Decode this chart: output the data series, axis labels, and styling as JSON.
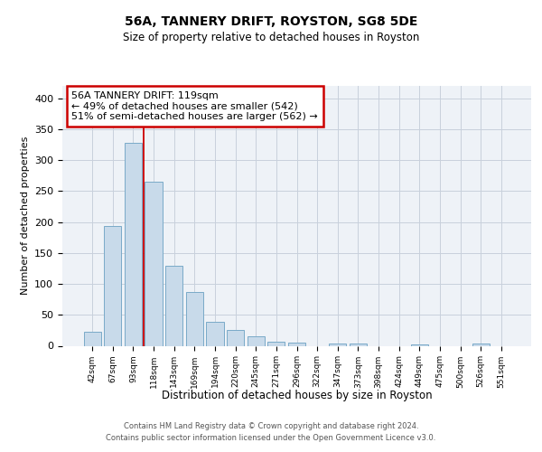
{
  "title": "56A, TANNERY DRIFT, ROYSTON, SG8 5DE",
  "subtitle": "Size of property relative to detached houses in Royston",
  "xlabel": "Distribution of detached houses by size in Royston",
  "ylabel": "Number of detached properties",
  "categories": [
    "42sqm",
    "67sqm",
    "93sqm",
    "118sqm",
    "143sqm",
    "169sqm",
    "194sqm",
    "220sqm",
    "245sqm",
    "271sqm",
    "296sqm",
    "322sqm",
    "347sqm",
    "373sqm",
    "398sqm",
    "424sqm",
    "449sqm",
    "475sqm",
    "500sqm",
    "526sqm",
    "551sqm"
  ],
  "values": [
    23,
    193,
    328,
    265,
    130,
    87,
    38,
    25,
    16,
    7,
    5,
    0,
    4,
    3,
    0,
    0,
    2,
    0,
    0,
    3,
    0
  ],
  "bar_color": "#c8daea",
  "bar_edge_color": "#7aaac8",
  "vline_color": "#cc0000",
  "vline_x": 2.5,
  "annotation_line1": "56A TANNERY DRIFT: 119sqm",
  "annotation_line2": "← 49% of detached houses are smaller (542)",
  "annotation_line3": "51% of semi-detached houses are larger (562) →",
  "ylim": [
    0,
    420
  ],
  "yticks": [
    0,
    50,
    100,
    150,
    200,
    250,
    300,
    350,
    400
  ],
  "grid_color": "#c8d0dc",
  "plot_bg_color": "#eef2f7",
  "footer_line1": "Contains HM Land Registry data © Crown copyright and database right 2024.",
  "footer_line2": "Contains public sector information licensed under the Open Government Licence v3.0."
}
